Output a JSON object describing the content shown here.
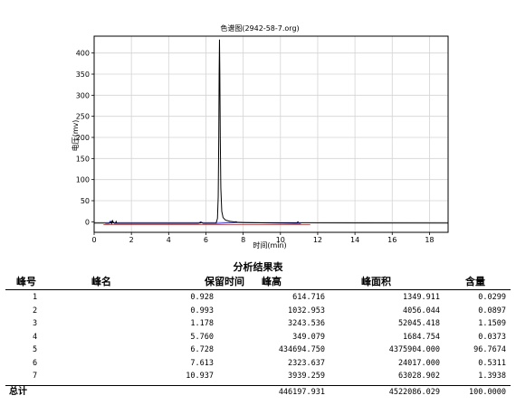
{
  "chart_data": {
    "type": "line",
    "title": "色谱图(2942-58-7.org)",
    "xlabel": "时间(min)",
    "ylabel": "电压(mv)",
    "xlim": [
      0,
      19
    ],
    "ylim": [
      -25,
      440
    ],
    "x_ticks": [
      0,
      2,
      4,
      6,
      8,
      10,
      12,
      14,
      16,
      18
    ],
    "y_ticks": [
      0,
      50,
      100,
      150,
      200,
      250,
      300,
      350,
      400
    ],
    "grid": true,
    "series": [
      {
        "color": "#000000",
        "points": [
          [
            0,
            -3
          ],
          [
            0.9,
            -3
          ],
          [
            0.928,
            1
          ],
          [
            0.96,
            -3
          ],
          [
            0.993,
            2
          ],
          [
            1.03,
            -2.5
          ],
          [
            1.15,
            -3
          ],
          [
            1.178,
            0.5
          ],
          [
            1.21,
            -3
          ],
          [
            5.7,
            -3
          ],
          [
            5.76,
            -1.5
          ],
          [
            5.82,
            -3
          ],
          [
            6.55,
            -3
          ],
          [
            6.62,
            8
          ],
          [
            6.66,
            60
          ],
          [
            6.69,
            200
          ],
          [
            6.71,
            350
          ],
          [
            6.728,
            432
          ],
          [
            6.745,
            360
          ],
          [
            6.77,
            200
          ],
          [
            6.8,
            80
          ],
          [
            6.85,
            25
          ],
          [
            6.92,
            10
          ],
          [
            7.05,
            4
          ],
          [
            7.3,
            1
          ],
          [
            7.55,
            -0.5
          ],
          [
            7.613,
            0
          ],
          [
            7.7,
            -1.5
          ],
          [
            8.1,
            -2
          ],
          [
            9.0,
            -2.5
          ],
          [
            10.9,
            -2.5
          ],
          [
            10.937,
            0
          ],
          [
            10.98,
            -2.5
          ],
          [
            19,
            -3
          ]
        ]
      },
      {
        "color": "#0000ff",
        "points": [
          [
            0.6,
            -4
          ],
          [
            0.8,
            -4
          ],
          [
            0.86,
            1
          ],
          [
            0.94,
            -4
          ],
          [
            1.0,
            1
          ],
          [
            1.08,
            -4
          ],
          [
            1.25,
            -4
          ],
          [
            5.6,
            -4
          ],
          [
            5.72,
            0
          ],
          [
            5.85,
            -4
          ],
          [
            6.5,
            -4
          ],
          [
            7.55,
            -2
          ],
          [
            7.7,
            -2
          ],
          [
            10.8,
            -4
          ],
          [
            11.1,
            -4
          ]
        ]
      },
      {
        "color": "#ff0000",
        "points": [
          [
            0.5,
            -7
          ],
          [
            2.3,
            -7
          ],
          [
            5.4,
            -7
          ],
          [
            6.2,
            -7
          ],
          [
            7.2,
            -7
          ],
          [
            9.5,
            -7
          ],
          [
            10.6,
            -7
          ],
          [
            11.6,
            -7
          ]
        ]
      }
    ]
  },
  "table": {
    "title": "分析结果表",
    "headers": [
      "峰号",
      "峰名",
      "保留时间",
      "峰高",
      "峰面积",
      "含量"
    ],
    "rows": [
      [
        "1",
        "",
        "0.928",
        "614.716",
        "1349.911",
        "0.0299"
      ],
      [
        "2",
        "",
        "0.993",
        "1032.953",
        "4056.044",
        "0.0897"
      ],
      [
        "3",
        "",
        "1.178",
        "3243.536",
        "52045.418",
        "1.1509"
      ],
      [
        "4",
        "",
        "5.760",
        "349.079",
        "1684.754",
        "0.0373"
      ],
      [
        "5",
        "",
        "6.728",
        "434694.750",
        "4375904.000",
        "96.7674"
      ],
      [
        "6",
        "",
        "7.613",
        "2323.637",
        "24017.000",
        "0.5311"
      ],
      [
        "7",
        "",
        "10.937",
        "3939.259",
        "63028.902",
        "1.3938"
      ]
    ],
    "total": {
      "label": "总计",
      "height": "446197.931",
      "area": "4522086.029",
      "content": "100.0000"
    }
  }
}
